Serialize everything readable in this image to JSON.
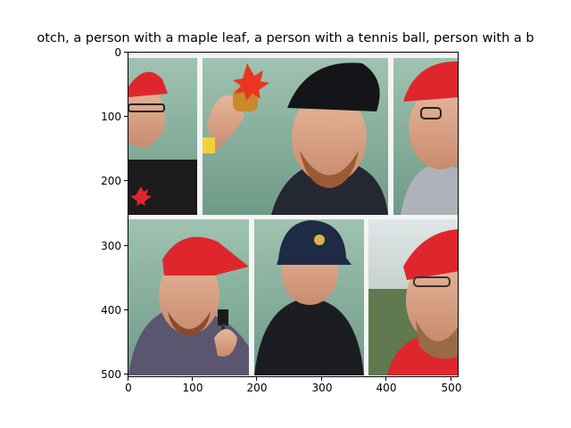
{
  "figure": {
    "title": "otch,  a person with a maple leaf, a person with a tennis ball, person with a b"
  },
  "axes": {
    "x_ticks": [
      "0",
      "100",
      "200",
      "300",
      "400",
      "500"
    ],
    "y_ticks": [
      "0",
      "100",
      "200",
      "300",
      "400",
      "500"
    ]
  },
  "image": {
    "description": "grid of six portrait photos of people in caps",
    "panels": [
      {
        "subject": "person in red cap with glasses, black shirt with red maple leaf"
      },
      {
        "subject": "bearded man in black cap holding small bottle with maple leaf"
      },
      {
        "subject": "older man in red cap with glasses"
      },
      {
        "subject": "bearded man in red cap holding a small tool"
      },
      {
        "subject": "person in navy cap and black quilted jacket"
      },
      {
        "subject": "bearded man in red cap with glasses"
      }
    ]
  },
  "colors": {
    "cap_red": "#e0262d",
    "background_green": "#8fb8a4",
    "cap_navy": "#1f2a44"
  }
}
